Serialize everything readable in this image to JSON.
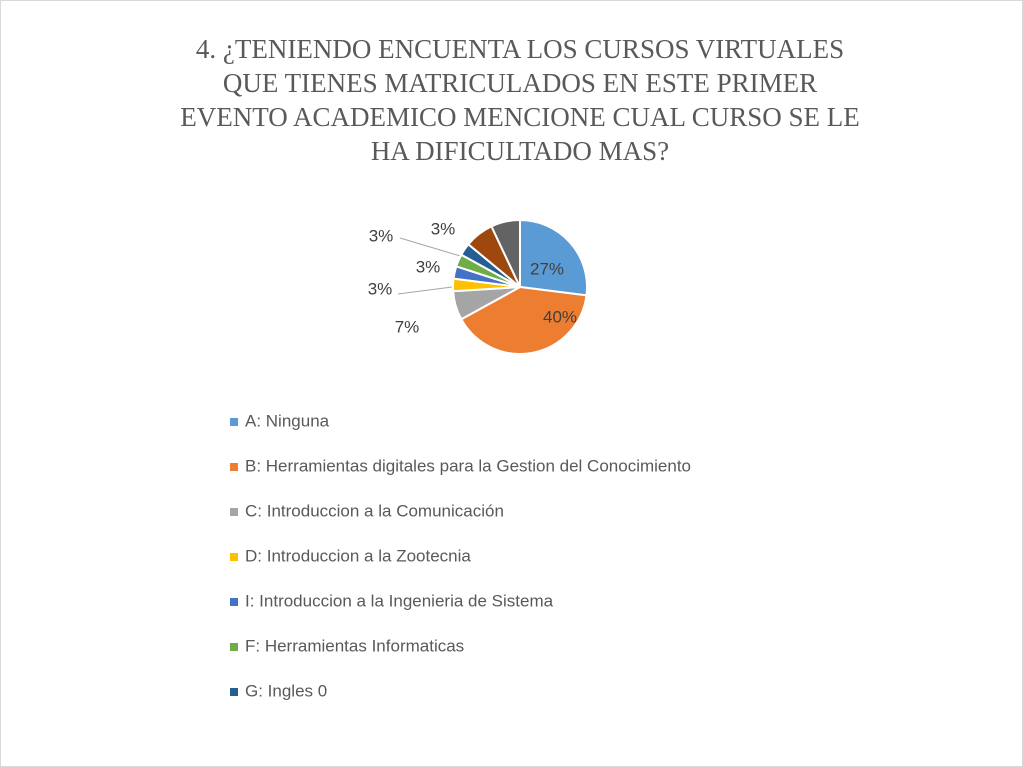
{
  "chart_data": {
    "type": "pie",
    "title": [
      "4. ¿TENIENDO ENCUENTA LOS CURSOS VIRTUALES",
      "QUE TIENES MATRICULADOS EN ESTE PRIMER",
      "EVENTO ACADEMICO MENCIONE CUAL CURSO SE LE",
      "HA DIFICULTADO MAS?"
    ],
    "categories": [
      "A: Ninguna",
      "B: Herramientas digitales para la Gestion del Conocimiento",
      "C: Introduccion a la Comunicación",
      "D: Introduccion a la Zootecnia",
      "I: Introduccion a la Ingenieria de Sistema",
      "F: Herramientas Informaticas",
      "G: Ingles 0",
      null,
      null
    ],
    "values": [
      27,
      40,
      7,
      3,
      3,
      3,
      3,
      7,
      7
    ],
    "value_labels": [
      "27%",
      "40%",
      "7%",
      "3%",
      "3%",
      "3%",
      "3%",
      null,
      null
    ],
    "colors": [
      "#5b9bd5",
      "#ed7d31",
      "#a5a5a5",
      "#ffc000",
      "#4472c4",
      "#70ad47",
      "#255e91",
      "#9e480e",
      "#636363"
    ],
    "legend": "bottom"
  }
}
